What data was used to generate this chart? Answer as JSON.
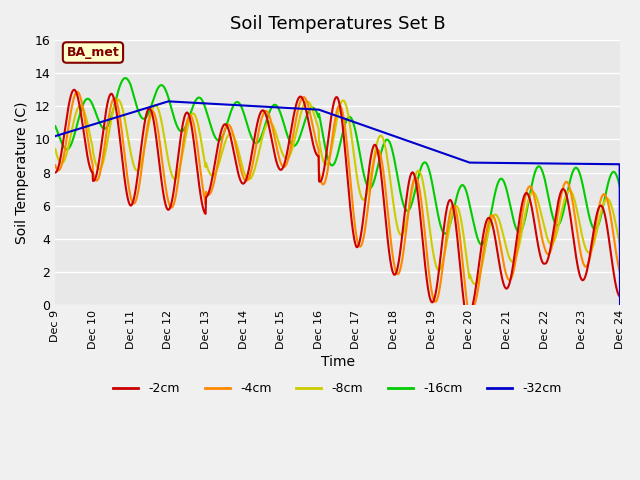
{
  "title": "Soil Temperatures Set B",
  "xlabel": "Time",
  "ylabel": "Soil Temperature (C)",
  "ylim": [
    0,
    16
  ],
  "xlim": [
    0,
    360
  ],
  "background_color": "#e8e8e8",
  "annotation_text": "BA_met",
  "legend_labels": [
    "-2cm",
    "-4cm",
    "-8cm",
    "-16cm",
    "-32cm"
  ],
  "legend_colors": [
    "#cc0000",
    "#ff8800",
    "#cccc00",
    "#00cc00",
    "#0000cc"
  ],
  "xtick_labels": [
    "Dec 9",
    "Dec 10",
    "Dec 11",
    "Dec 12",
    "Dec 13",
    "Dec 14",
    "Dec 15",
    "Dec 16",
    "Dec 17",
    "Dec 18",
    "Dec 19",
    "Dec 20",
    "Dec 21",
    "Dec 22",
    "Dec 23",
    "Dec 24"
  ],
  "xtick_positions": [
    0,
    24,
    48,
    72,
    96,
    120,
    144,
    168,
    192,
    216,
    240,
    264,
    288,
    312,
    336,
    360
  ]
}
